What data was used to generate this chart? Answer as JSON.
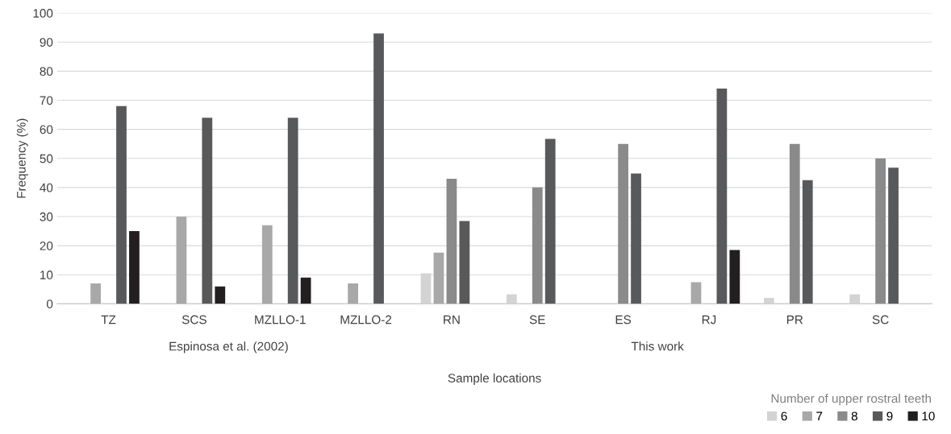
{
  "chart_data": {
    "type": "bar",
    "xlabel": "Sample locations",
    "ylabel": "Frequency (%)",
    "legend_title": "Number of upper rostral teeth",
    "categories": [
      "TZ",
      "SCS",
      "MZLLO-1",
      "MZLLO-2",
      "RN",
      "SE",
      "ES",
      "RJ",
      "PR",
      "SC"
    ],
    "series": [
      {
        "name": "6",
        "color": "#d3d3d3",
        "values": [
          0,
          0,
          0,
          0,
          10.5,
          3.3,
          0,
          0,
          2,
          3.3
        ]
      },
      {
        "name": "7",
        "color": "#a8a8a8",
        "values": [
          7,
          30,
          27,
          7,
          17.6,
          0,
          0,
          7.4,
          0,
          0
        ]
      },
      {
        "name": "8",
        "color": "#8a8a8a",
        "values": [
          0,
          0,
          0,
          0,
          43,
          40,
          55,
          0,
          55,
          50
        ]
      },
      {
        "name": "9",
        "color": "#58595b",
        "values": [
          68,
          64,
          64,
          93,
          28.5,
          56.7,
          44.8,
          74,
          42.5,
          46.8
        ]
      },
      {
        "name": "10",
        "color": "#231f20",
        "values": [
          25,
          6,
          9,
          0,
          0,
          0,
          0,
          18.5,
          0,
          0
        ]
      }
    ],
    "ylim": [
      0,
      100
    ],
    "yticks": [
      0,
      10,
      20,
      30,
      40,
      50,
      60,
      70,
      80,
      90,
      100
    ],
    "grid": "y",
    "legend": "bottom right",
    "annotations": [
      "Espinosa et al. (2002)",
      "This work"
    ]
  }
}
